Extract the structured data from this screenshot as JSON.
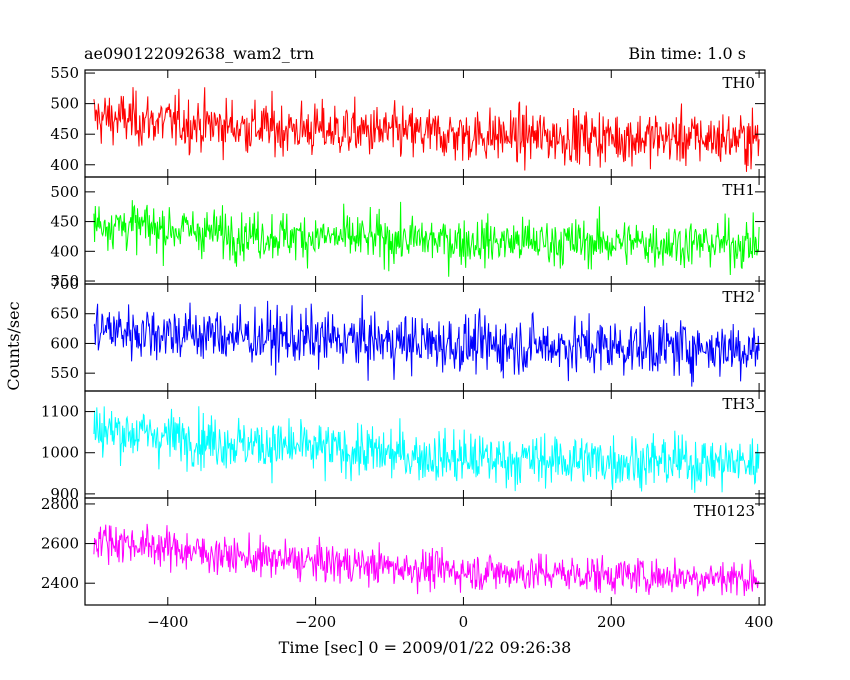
{
  "header": {
    "title_left": "ae090122092638_wam2_trn",
    "title_right": "Bin time: 1.0 s"
  },
  "chart_data": {
    "type": "line",
    "xlabel": "Time [sec] 0 = 2009/01/22 09:26:38",
    "ylabel": "Counts/sec",
    "xlim": [
      -512,
      408
    ],
    "x_ticks": [
      -400,
      -200,
      0,
      200,
      400
    ],
    "x_tick_labels": [
      "−400",
      "−200",
      "0",
      "200",
      "400"
    ],
    "x_range": [
      -500,
      400
    ],
    "bin_time_s": 1.0,
    "panels": [
      {
        "name": "TH0",
        "color": "#ff0000",
        "ylim": [
          380,
          555
        ],
        "yticks": [
          400,
          450,
          500,
          550
        ],
        "ytick_labels": [
          "400",
          "450",
          "500",
          "550"
        ],
        "trend": [
          [
            -500,
            478
          ],
          [
            -300,
            462
          ],
          [
            0,
            448
          ],
          [
            400,
            442
          ]
        ],
        "noise": 22,
        "data_range": [
          383,
          555
        ]
      },
      {
        "name": "TH1",
        "color": "#00ff00",
        "ylim": [
          345,
          525
        ],
        "yticks": [
          350,
          400,
          450,
          500
        ],
        "ytick_labels": [
          "350",
          "400",
          "450",
          "500"
        ],
        "trend": [
          [
            -500,
            448
          ],
          [
            -300,
            428
          ],
          [
            0,
            417
          ],
          [
            400,
            412
          ]
        ],
        "noise": 20,
        "data_range": [
          348,
          520
        ]
      },
      {
        "name": "TH2",
        "color": "#0000ff",
        "ylim": [
          520,
          700
        ],
        "yticks": [
          550,
          600,
          650,
          700
        ],
        "ytick_labels": [
          "550",
          "600",
          "650",
          "700"
        ],
        "trend": [
          [
            -500,
            624
          ],
          [
            -300,
            612
          ],
          [
            0,
            598
          ],
          [
            400,
            592
          ]
        ],
        "noise": 24,
        "data_range": [
          522,
          700
        ]
      },
      {
        "name": "TH3",
        "color": "#00ffff",
        "ylim": [
          890,
          1150
        ],
        "yticks": [
          900,
          1000,
          1100
        ],
        "ytick_labels": [
          "900",
          "1000",
          "1100"
        ],
        "trend": [
          [
            -500,
            1058
          ],
          [
            -300,
            1022
          ],
          [
            0,
            985
          ],
          [
            400,
            975
          ]
        ],
        "noise": 32,
        "data_range": [
          895,
          1150
        ]
      },
      {
        "name": "TH0123",
        "color": "#ff00ff",
        "ylim": [
          2290,
          2830
        ],
        "yticks": [
          2400,
          2600,
          2800
        ],
        "ytick_labels": [
          "2400",
          "2600",
          "2800"
        ],
        "trend": [
          [
            -500,
            2625
          ],
          [
            -300,
            2530
          ],
          [
            0,
            2460
          ],
          [
            400,
            2425
          ]
        ],
        "noise": 48,
        "data_range": [
          2300,
          2800
        ]
      }
    ]
  }
}
